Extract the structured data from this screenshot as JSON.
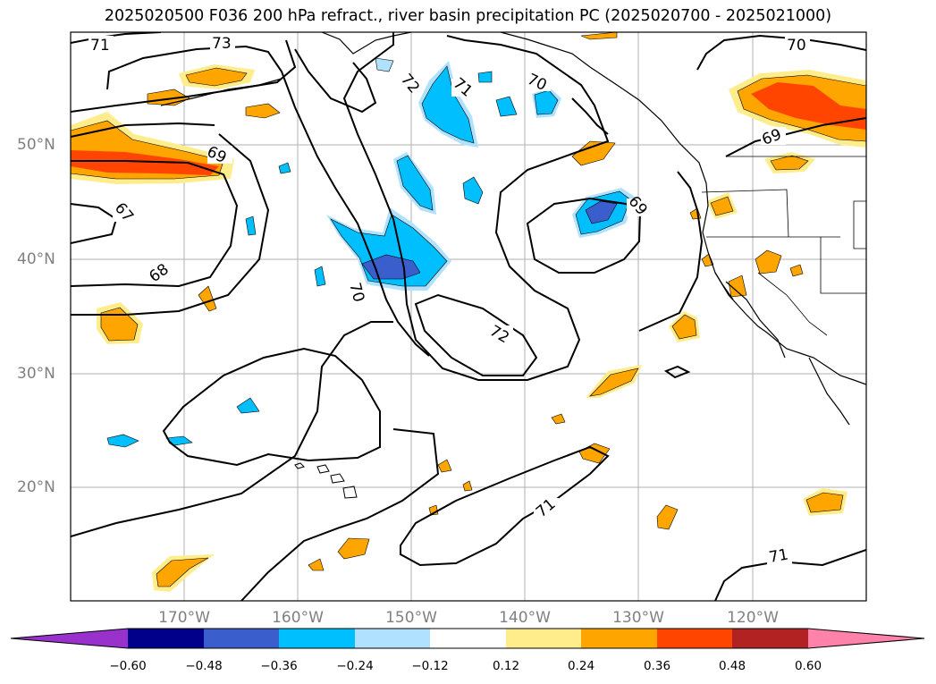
{
  "title": "2025020500 F036 200 hPa refract., river basin precipitation PC (2025020700 - 2025021000)",
  "lat_labels": [
    "50°N",
    "40°N",
    "30°N",
    "20°N"
  ],
  "lon_labels": [
    "170°W",
    "160°W",
    "150°W",
    "140°W",
    "130°W",
    "120°W"
  ],
  "contour_labels": [
    "71",
    "73",
    "72",
    "71",
    "70",
    "70",
    "69",
    "69",
    "67",
    "68",
    "70",
    "72",
    "69",
    "71",
    "71"
  ],
  "colorbar": {
    "ticks": [
      "−0.60",
      "−0.48",
      "−0.36",
      "−0.24",
      "−0.12",
      "0.12",
      "0.24",
      "0.36",
      "0.48",
      "0.60"
    ],
    "colors": [
      "#9932cc",
      "#00008b",
      "#3a5fcd",
      "#00bfff",
      "#b0e2ff",
      "#ffffff",
      "#ffec8b",
      "#ffa500",
      "#ff4500",
      "#b22222",
      "#ff82ab"
    ]
  },
  "colors": {
    "neg_strong": "#3a5fcd",
    "neg_mid": "#00bfff",
    "neg_weak": "#b0e2ff",
    "pos_weak": "#ffec8b",
    "pos_mid": "#ffa500",
    "pos_strong": "#ff4500"
  }
}
